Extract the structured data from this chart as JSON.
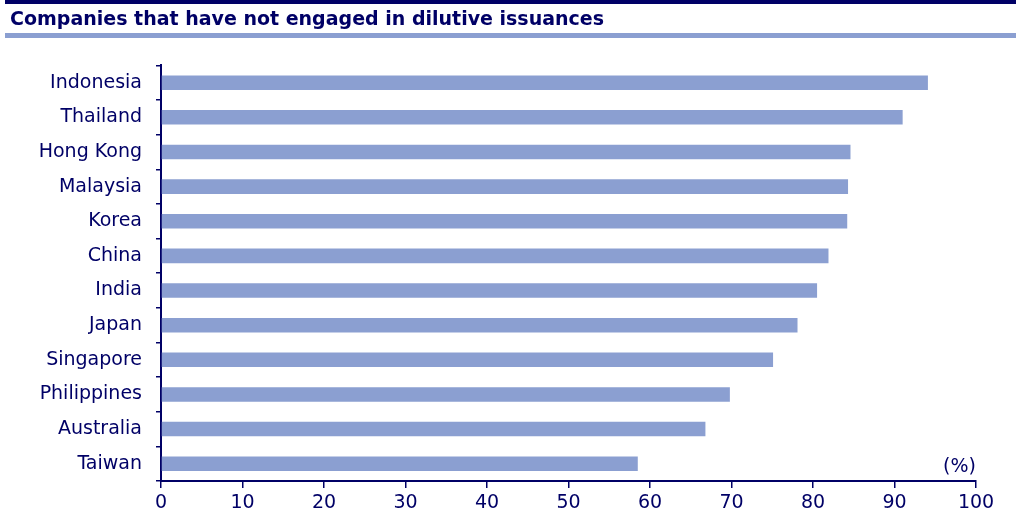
{
  "chart_data": {
    "type": "bar",
    "orientation": "horizontal",
    "title": "Companies that have not engaged in dilutive issuances",
    "xlabel": "(%)",
    "categories": [
      "Indonesia",
      "Thailand",
      "Hong Kong",
      "Malaysia",
      "Korea",
      "China",
      "India",
      "Japan",
      "Singapore",
      "Philippines",
      "Australia",
      "Taiwan"
    ],
    "values": [
      94.1,
      91.0,
      84.6,
      84.3,
      84.2,
      81.9,
      80.5,
      78.1,
      75.1,
      69.8,
      66.8,
      58.5
    ],
    "color": "#8b9fd1",
    "xlim": [
      0,
      100
    ],
    "xticks": [
      0,
      10,
      20,
      30,
      40,
      50,
      60,
      70,
      80,
      90,
      100
    ],
    "grid": false,
    "legend": false
  }
}
